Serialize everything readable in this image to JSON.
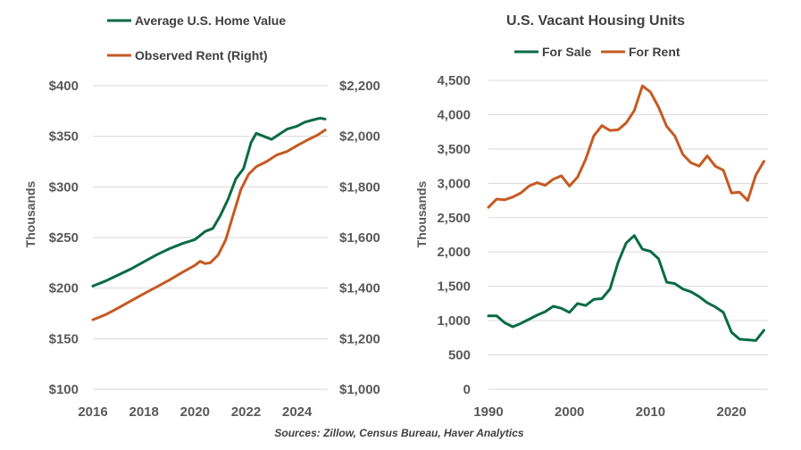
{
  "colors": {
    "green": "#0b6b44",
    "orange": "#c55a22"
  },
  "source": "Sources: Zillow, Census Bureau, Haver Analytics",
  "chart_data": [
    {
      "type": "line",
      "title": "",
      "legend": [
        "Average U.S. Home Value",
        "Observed Rent (Right)"
      ],
      "ylabel": "Thousands",
      "xlim": [
        2016,
        2025.2
      ],
      "ylim": [
        100,
        400
      ],
      "ylim_right": [
        1000,
        2200
      ],
      "xticks": [
        2016,
        2018,
        2020,
        2022,
        2024
      ],
      "xtick_labels": [
        "2016",
        "2018",
        "2020",
        "2022",
        "2024"
      ],
      "yticks": [
        100,
        150,
        200,
        250,
        300,
        350,
        400
      ],
      "ytick_labels": [
        "$100",
        "$150",
        "$200",
        "$250",
        "$300",
        "$350",
        "$400"
      ],
      "yticks_right": [
        1000,
        1200,
        1400,
        1600,
        1800,
        2000,
        2200
      ],
      "ytick_labels_right": [
        "$1,000",
        "$1,200",
        "$1,400",
        "$1,600",
        "$1,800",
        "$2,000",
        "$2,200"
      ],
      "series": [
        {
          "name": "Average U.S. Home Value",
          "axis": "left",
          "color": "#0b6b44",
          "x": [
            2016.0,
            2016.5,
            2017.0,
            2017.5,
            2018.0,
            2018.5,
            2019.0,
            2019.5,
            2020.0,
            2020.4,
            2020.7,
            2021.0,
            2021.3,
            2021.6,
            2021.9,
            2022.2,
            2022.4,
            2022.7,
            2023.0,
            2023.3,
            2023.6,
            2024.0,
            2024.3,
            2024.6,
            2024.9,
            2025.1
          ],
          "y": [
            202,
            207,
            213,
            219,
            226,
            233,
            239,
            244,
            248,
            256,
            259,
            272,
            288,
            308,
            318,
            344,
            353,
            350,
            347,
            352,
            357,
            360,
            364,
            366,
            368,
            367
          ]
        },
        {
          "name": "Observed Rent (Right)",
          "axis": "right",
          "color": "#c55a22",
          "x": [
            2016.0,
            2016.5,
            2017.0,
            2017.5,
            2018.0,
            2018.5,
            2019.0,
            2019.5,
            2020.0,
            2020.2,
            2020.4,
            2020.6,
            2020.9,
            2021.2,
            2021.5,
            2021.8,
            2022.1,
            2022.4,
            2022.8,
            2023.2,
            2023.6,
            2024.0,
            2024.4,
            2024.8,
            2025.1
          ],
          "y": [
            1275,
            1295,
            1322,
            1350,
            1378,
            1405,
            1432,
            1462,
            1490,
            1506,
            1497,
            1500,
            1530,
            1590,
            1690,
            1790,
            1850,
            1880,
            1900,
            1926,
            1940,
            1963,
            1985,
            2005,
            2025
          ]
        }
      ]
    },
    {
      "type": "line",
      "title": "U.S. Vacant Housing Units",
      "legend": [
        "For Sale",
        "For Rent"
      ],
      "ylabel": "Thousands",
      "xlim": [
        1990,
        2024.5
      ],
      "ylim": [
        0,
        4500
      ],
      "xticks": [
        1990,
        2000,
        2010,
        2020
      ],
      "xtick_labels": [
        "1990",
        "2000",
        "2010",
        "2020"
      ],
      "yticks": [
        0,
        500,
        1000,
        1500,
        2000,
        2500,
        3000,
        3500,
        4000,
        4500
      ],
      "ytick_labels": [
        "0",
        "500",
        "1,000",
        "1,500",
        "2,000",
        "2,500",
        "3,000",
        "3,500",
        "4,000",
        "4,500"
      ],
      "series": [
        {
          "name": "For Sale",
          "color": "#0b6b44",
          "x": [
            1990,
            1991,
            1992,
            1993,
            1994,
            1995,
            1996,
            1997,
            1998,
            1999,
            2000,
            2001,
            2002,
            2003,
            2004,
            2005,
            2006,
            2007,
            2008,
            2009,
            2010,
            2011,
            2012,
            2013,
            2014,
            2015,
            2016,
            2017,
            2018,
            2019,
            2020,
            2021,
            2022,
            2023,
            2024
          ],
          "y": [
            1070,
            1070,
            970,
            910,
            960,
            1020,
            1080,
            1130,
            1210,
            1180,
            1120,
            1250,
            1220,
            1310,
            1320,
            1460,
            1850,
            2130,
            2240,
            2040,
            2010,
            1900,
            1560,
            1540,
            1460,
            1420,
            1350,
            1260,
            1200,
            1120,
            830,
            730,
            720,
            710,
            860
          ]
        },
        {
          "name": "For Rent",
          "color": "#c55a22",
          "x": [
            1990,
            1991,
            1992,
            1993,
            1994,
            1995,
            1996,
            1997,
            1998,
            1999,
            2000,
            2001,
            2002,
            2003,
            2004,
            2005,
            2006,
            2007,
            2008,
            2009,
            2010,
            2011,
            2012,
            2013,
            2014,
            2015,
            2016,
            2017,
            2018,
            2019,
            2020,
            2021,
            2022,
            2023,
            2024
          ],
          "y": [
            2650,
            2770,
            2760,
            2800,
            2860,
            2960,
            3010,
            2970,
            3060,
            3110,
            2960,
            3090,
            3350,
            3690,
            3840,
            3770,
            3780,
            3880,
            4060,
            4420,
            4330,
            4110,
            3830,
            3690,
            3420,
            3300,
            3250,
            3400,
            3250,
            3190,
            2860,
            2870,
            2750,
            3120,
            3320
          ]
        }
      ]
    }
  ]
}
